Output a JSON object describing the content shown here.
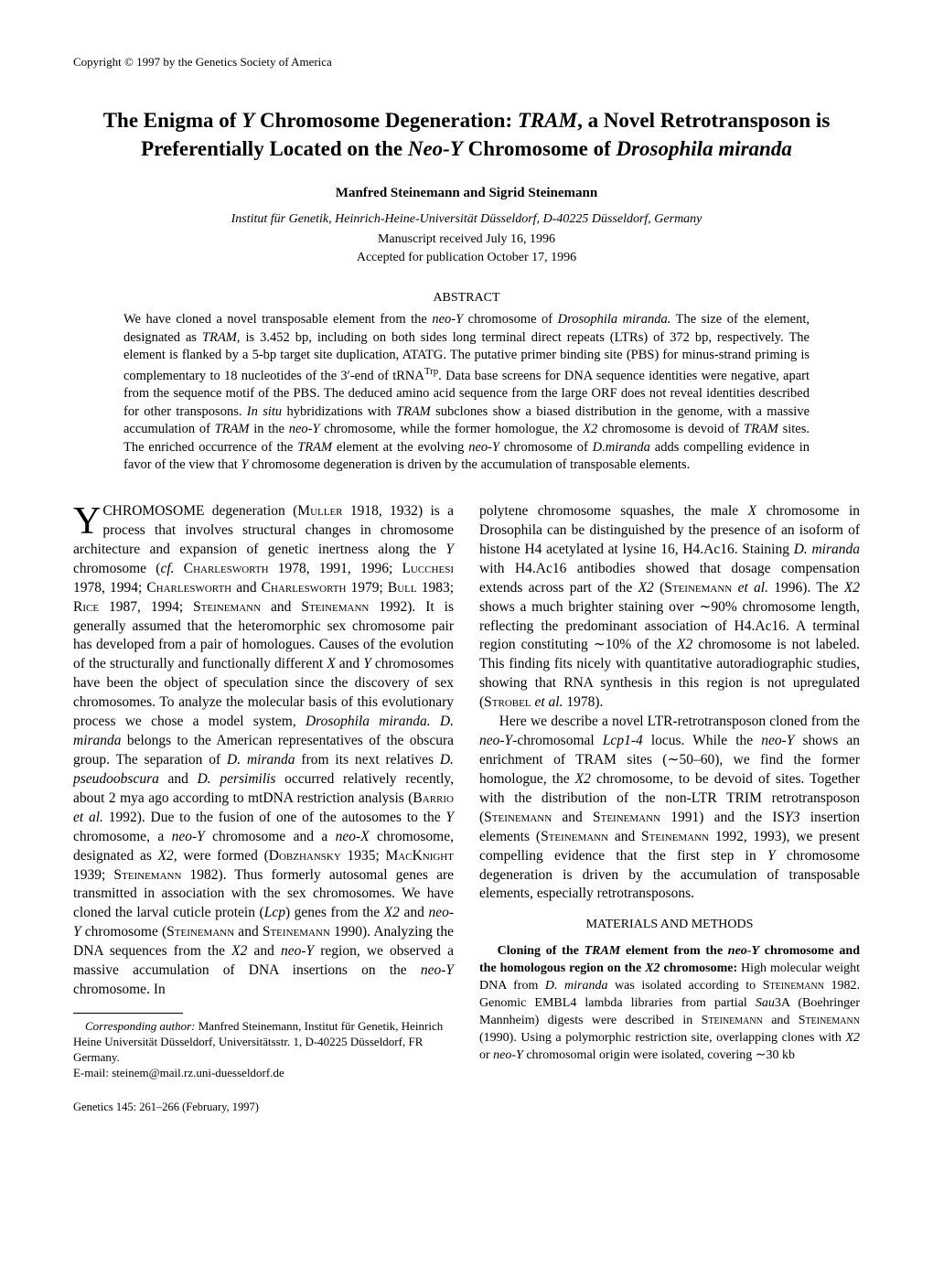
{
  "copyright": "Copyright © 1997 by the Genetics Society of America",
  "title_html": "The Enigma of <i>Y</i> Chromosome Degeneration: <i>TRAM</i>, a Novel Retrotransposon is Preferentially Located on the <i>Neo-Y</i> Chromosome of <i>Drosophila miranda</i>",
  "authors": "Manfred Steinemann and Sigrid Steinemann",
  "affiliation": "Institut für Genetik, Heinrich-Heine-Universität Düsseldorf, D-40225 Düsseldorf, Germany",
  "date_received": "Manuscript received July 16, 1996",
  "date_accepted": "Accepted for publication October 17, 1996",
  "abstract_heading": "ABSTRACT",
  "abstract_body_html": "We have cloned a novel transposable element from the <i>neo-Y</i> chromosome of <i>Drosophila miranda.</i> The size of the element, designated as <i>TRAM</i>, is 3.452 bp, including on both sides long terminal direct repeats (LTRs) of 372 bp, respectively. The element is flanked by a 5-bp target site duplication, ATATG. The putative primer binding site (PBS) for minus-strand priming is complementary to 18 nucleotides of the 3&prime;-end of tRNA<sup>Trp</sup>. Data base screens for DNA sequence identities were negative, apart from the sequence motif of the PBS. The deduced amino acid sequence from the large ORF does not reveal identities described for other transposons. <i>In situ</i> hybridizations with <i>TRAM</i> subclones show a biased distribution in the genome, with a massive accumulation of <i>TRAM</i> in the <i>neo-Y</i> chromosome, while the former homologue, the <i>X2</i> chromosome is devoid of <i>TRAM</i> sites. The enriched occurrence of the <i>TRAM</i> element at the evolving <i>neo-Y</i> chromosome of <i>D.miranda</i> adds compelling evidence in favor of the view that <i>Y</i> chromosome degeneration is driven by the accumulation of transposable elements.",
  "body_col1_p1_html": "CHROMOSOME degeneration (<span class=\"small-caps\">Muller</span> 1918, 1932) is a process that involves structural changes in chromosome architecture and expansion of genetic inertness along the <i>Y</i> chromosome (<i>cf.</i> <span class=\"small-caps\">Charlesworth</span> 1978, 1991, 1996; <span class=\"small-caps\">Lucchesi</span> 1978, 1994; <span class=\"small-caps\">Charlesworth</span> and <span class=\"small-caps\">Charlesworth</span> 1979; <span class=\"small-caps\">Bull</span> 1983; <span class=\"small-caps\">Rice</span> 1987, 1994; <span class=\"small-caps\">Steinemann</span> and <span class=\"small-caps\">Steinemann</span> 1992). It is generally assumed that the heteromorphic sex chromosome pair has developed from a pair of homologues. Causes of the evolution of the structurally and functionally different <i>X</i> and <i>Y</i> chromosomes have been the object of speculation since the discovery of sex chromosomes. To analyze the molecular basis of this evolutionary process we chose a model system, <i>Drosophila miranda. D. miranda</i> belongs to the American representatives of the obscura group. The separation of <i>D. miranda</i> from its next relatives <i>D. pseudoobscura</i> and <i>D. persimilis</i> occurred relatively recently, about 2 mya ago according to mtDNA restriction analysis (<span class=\"small-caps\">Barrio</span> <i>et al.</i> 1992). Due to the fusion of one of the autosomes to the <i>Y</i> chromosome, a <i>neo-Y</i> chromosome and a <i>neo-X</i> chromosome, designated as <i>X2</i>, were formed (<span class=\"small-caps\">Dobzhansky</span> 1935; <span class=\"small-caps\">MacKnight</span> 1939; <span class=\"small-caps\">Steinemann</span> 1982). Thus formerly autosomal genes are transmitted in association with the sex chromosomes. We have cloned the larval cuticle protein (<i>Lcp</i>) genes from the <i>X2</i> and <i>neo-Y</i> chromosome (<span class=\"small-caps\">Steinemann</span> and <span class=\"small-caps\">Steinemann</span> 1990). Analyzing the DNA sequences from the <i>X2</i> and <i>neo-Y</i> region, we observed a massive accumulation of DNA insertions on the <i>neo-Y</i> chromosome. In",
  "body_col2_p1_html": "polytene chromosome squashes, the male <i>X</i> chromosome in Drosophila can be distinguished by the presence of an isoform of histone H4 acetylated at lysine 16, H4.Ac16. Staining <i>D. miranda</i> with H4.Ac16 antibodies showed that dosage compensation extends across part of the <i>X2</i> (<span class=\"small-caps\">Steinemann</span> <i>et al.</i> 1996). The <i>X2</i> shows a much brighter staining over &sim;90% chromosome length, reflecting the predominant association of H4.Ac16. A terminal region constituting &sim;10% of the <i>X2</i> chromosome is not labeled. This finding fits nicely with quantitative autoradiographic studies, showing that RNA synthesis in this region is not upregulated (<span class=\"small-caps\">Strobel</span> <i>et al.</i> 1978).",
  "body_col2_p2_html": "Here we describe a novel LTR-retrotransposon cloned from the <i>neo-Y</i>-chromosomal <i>Lcp1-4</i> locus. While the <i>neo-Y</i> shows an enrichment of TRAM sites (&sim;50–60), we find the former homologue, the <i>X2</i> chromosome, to be devoid of sites. Together with the distribution of the non-LTR TRIM retrotransposon (<span class=\"small-caps\">Steinemann</span> and <span class=\"small-caps\">Steinemann</span> 1991) and the IS<i>Y3</i> insertion elements (<span class=\"small-caps\">Steinemann</span> and <span class=\"small-caps\">Steinemann</span> 1992, 1993), we present compelling evidence that the first step in <i>Y</i> chromosome degeneration is driven by the accumulation of transposable elements, especially retrotransposons.",
  "materials_heading": "MATERIALS AND METHODS",
  "materials_p1_html": "<b>Cloning of the <i>TRAM</i> element from the <i>neo-Y</i> chromosome and the homologous region on the <i>X2</i> chromosome:</b> High molecular weight DNA from <i>D. miranda</i> was isolated according to <span class=\"small-caps\">Steinemann</span> 1982. Genomic EMBL4 lambda libraries from partial <i>Sau</i>3A (Boehringer Mannheim) digests were described in <span class=\"small-caps\">Steinemann</span> and <span class=\"small-caps\">Steinemann</span> (1990). Using a polymorphic restriction site, overlapping clones with <i>X2</i> or <i>neo-Y</i> chromosomal origin were isolated, covering &sim;30 kb",
  "footnote_corresponding_html": "<i>Corresponding author:</i> Manfred Steinemann, Institut für Genetik, Heinrich Heine Universität Düsseldorf, Universitätsstr. 1, D-40225 Düsseldorf, FR Germany.",
  "footnote_email": "E-mail: steinem@mail.rz.uni-duesseldorf.de",
  "journal_ref": "Genetics 145: 261–266 (February, 1997)"
}
